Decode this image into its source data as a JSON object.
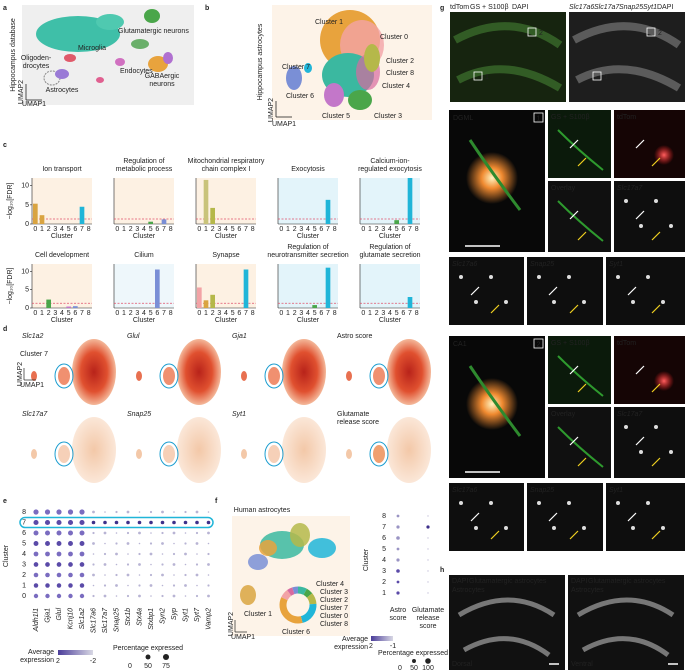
{
  "panels": [
    "a",
    "b",
    "c",
    "d",
    "e",
    "f",
    "g",
    "h"
  ],
  "a": {
    "side_label": "Hippocampus database",
    "types": [
      "Glutamatergic neurons",
      "Microglia",
      "Oligoden-",
      "drocytes",
      "Endocytes",
      "Astrocytes",
      "GABAergic",
      "neurons"
    ],
    "axes": [
      "UMAP2",
      "UMAP1"
    ]
  },
  "b": {
    "side_label": "Hippocampus astrocytes",
    "clusters": [
      "Cluster 1",
      "Cluster 0",
      "Cluster 7",
      "Cluster 2",
      "Cluster 8",
      "Cluster 4",
      "Cluster 6",
      "Cluster 5",
      "Cluster 3"
    ],
    "axes": [
      "UMAP2",
      "UMAP1"
    ]
  },
  "chart_data": [
    {
      "type": "bar",
      "title": [
        "Ion transport"
      ],
      "ylabel": "−log₁₀[FDR]",
      "xlabel": "Cluster",
      "categories": [
        "0",
        "1",
        "2",
        "3",
        "4",
        "5",
        "6",
        "7",
        "8"
      ],
      "values": [
        5.3,
        2.3,
        0,
        0,
        0,
        0,
        0,
        4.5,
        0
      ],
      "colors": [
        "#d9a441",
        "#d9a441",
        "#b5b84a",
        "#4aa64a",
        "#3bb8a0",
        "#c377c9",
        "#7a8fd6",
        "#20b5d8",
        "#999999"
      ],
      "background": "#fdf1e3",
      "threshold": 1.3,
      "ylim": [
        0,
        12
      ],
      "yticks": [
        0,
        5,
        10
      ]
    },
    {
      "type": "bar",
      "title": [
        "Regulation of",
        "metabolic process"
      ],
      "xlabel": "Cluster",
      "categories": [
        "0",
        "1",
        "2",
        "3",
        "4",
        "5",
        "6",
        "7",
        "8"
      ],
      "values": [
        0,
        0,
        0,
        0,
        0,
        0.6,
        0,
        1.2,
        0
      ],
      "colors": [
        "#f2a3a6",
        "#d9a441",
        "#b5b84a",
        "#4aa64a",
        "#3bb8a0",
        "#4aa64a",
        "#7a8fd6",
        "#7a8fd6",
        "#999999"
      ],
      "background": "#fdf1e3",
      "threshold": 1.3,
      "ylim": [
        0,
        12
      ]
    },
    {
      "type": "bar",
      "title": [
        "Mitochondrial respiratory",
        "chain complex I"
      ],
      "xlabel": "Cluster",
      "categories": [
        "0",
        "1",
        "2",
        "3",
        "4",
        "5",
        "6",
        "7",
        "8"
      ],
      "values": [
        0,
        11.5,
        4.2,
        0,
        0,
        0,
        0,
        0,
        0
      ],
      "colors": [
        "#f2a3a6",
        "#c9c37a",
        "#b5b84a",
        "#4aa64a",
        "#3bb8a0",
        "#c377c9",
        "#7a8fd6",
        "#20b5d8",
        "#999999"
      ],
      "background": "#fdf1e3",
      "threshold": 1.3,
      "ylim": [
        0,
        12
      ]
    },
    {
      "type": "bar",
      "title": [
        "Exocytosis"
      ],
      "xlabel": "Cluster",
      "categories": [
        "0",
        "1",
        "2",
        "3",
        "4",
        "5",
        "6",
        "7",
        "8"
      ],
      "values": [
        0,
        0,
        0,
        0,
        0,
        0,
        0,
        6.3,
        0
      ],
      "colors": [
        "#f2a3a6",
        "#d9a441",
        "#b5b84a",
        "#4aa64a",
        "#3bb8a0",
        "#c377c9",
        "#7a8fd6",
        "#20b5d8",
        "#999999"
      ],
      "background": "#e3f4fa",
      "threshold": 1.3,
      "ylim": [
        0,
        12
      ]
    },
    {
      "type": "bar",
      "title": [
        "Calcium-ion-",
        "regulated exocytosis"
      ],
      "xlabel": "Cluster",
      "categories": [
        "0",
        "1",
        "2",
        "3",
        "4",
        "5",
        "6",
        "7",
        "8"
      ],
      "values": [
        0,
        0,
        0,
        0,
        0,
        1,
        0,
        12,
        0
      ],
      "colors": [
        "#f2a3a6",
        "#d9a441",
        "#b5b84a",
        "#4aa64a",
        "#3bb8a0",
        "#4aa64a",
        "#7a8fd6",
        "#20b5d8",
        "#999999"
      ],
      "background": "#e3f4fa",
      "threshold": 1.3,
      "ylim": [
        0,
        12
      ]
    },
    {
      "type": "bar",
      "title": [
        "Cell development"
      ],
      "ylabel": "−log₁₀[FDR]",
      "xlabel": "Cluster",
      "categories": [
        "0",
        "1",
        "2",
        "3",
        "4",
        "5",
        "6",
        "7",
        "8"
      ],
      "values": [
        0,
        0,
        2.3,
        0,
        0,
        0.4,
        0.5,
        0,
        0
      ],
      "colors": [
        "#f2a3a6",
        "#d9a441",
        "#4aa64a",
        "#4aa64a",
        "#3bb8a0",
        "#c377c9",
        "#7a8fd6",
        "#20b5d8",
        "#999999"
      ],
      "background": "#fdf1e3",
      "threshold": 1.3,
      "ylim": [
        0,
        12
      ],
      "yticks": [
        0,
        5,
        10
      ]
    },
    {
      "type": "bar",
      "title": [
        "Cilium"
      ],
      "xlabel": "Cluster",
      "categories": [
        "0",
        "1",
        "2",
        "3",
        "4",
        "5",
        "6",
        "7",
        "8"
      ],
      "values": [
        0,
        0,
        0,
        0,
        0,
        0,
        10.5,
        0,
        0
      ],
      "colors": [
        "#f2a3a6",
        "#d9a441",
        "#b5b84a",
        "#4aa64a",
        "#3bb8a0",
        "#c377c9",
        "#7a8fd6",
        "#20b5d8",
        "#999999"
      ],
      "background": "#eef7fb",
      "threshold": 1.3,
      "ylim": [
        0,
        12
      ]
    },
    {
      "type": "bar",
      "title": [
        "Synapse"
      ],
      "xlabel": "Cluster",
      "categories": [
        "0",
        "1",
        "2",
        "3",
        "4",
        "5",
        "6",
        "7",
        "8"
      ],
      "values": [
        5.6,
        2.1,
        3.6,
        0,
        0,
        0,
        0,
        10.5,
        0
      ],
      "colors": [
        "#f2a3a6",
        "#d9a441",
        "#b5b84a",
        "#4aa64a",
        "#3bb8a0",
        "#c377c9",
        "#7a8fd6",
        "#20b5d8",
        "#999999"
      ],
      "background": "#fdf1e3",
      "threshold": 1.3,
      "ylim": [
        0,
        12
      ]
    },
    {
      "type": "bar",
      "title": [
        "Regulation of",
        "neurotransmitter secretion"
      ],
      "xlabel": "Cluster",
      "categories": [
        "0",
        "1",
        "2",
        "3",
        "4",
        "5",
        "6",
        "7",
        "8"
      ],
      "values": [
        0,
        0,
        0,
        0,
        0,
        0.8,
        0,
        11,
        0
      ],
      "colors": [
        "#f2a3a6",
        "#d9a441",
        "#b5b84a",
        "#4aa64a",
        "#3bb8a0",
        "#4aa64a",
        "#7a8fd6",
        "#20b5d8",
        "#999999"
      ],
      "background": "#e3f4fa",
      "threshold": 1.3,
      "ylim": [
        0,
        12
      ]
    },
    {
      "type": "bar",
      "title": [
        "Regulation of",
        "glutamate secretion"
      ],
      "xlabel": "Cluster",
      "categories": [
        "0",
        "1",
        "2",
        "3",
        "4",
        "5",
        "6",
        "7",
        "8"
      ],
      "values": [
        0,
        0,
        0,
        0,
        0,
        0,
        0,
        3,
        0
      ],
      "colors": [
        "#f2a3a6",
        "#d9a441",
        "#b5b84a",
        "#4aa64a",
        "#3bb8a0",
        "#c377c9",
        "#7a8fd6",
        "#20b5d8",
        "#999999"
      ],
      "background": "#e3f4fa",
      "threshold": 1.3,
      "ylim": [
        0,
        12
      ]
    }
  ],
  "d": {
    "tiles": [
      "Slc1a2",
      "Glul",
      "Gja1",
      "Astro score",
      "Slc17a7",
      "Snap25",
      "Syt1",
      "Glutamate",
      "release score"
    ],
    "cluster": "Cluster 7",
    "axes": [
      "UMAP2",
      "UMAP1"
    ]
  },
  "e": {
    "ylabel": "Cluster",
    "clusters": [
      "8",
      "7",
      "6",
      "5",
      "4",
      "3",
      "2",
      "1",
      "0"
    ],
    "genes": [
      "Aldh1l1",
      "Gja1",
      "Glul",
      "Kcnj10",
      "Slc1a2",
      "Slc17a6",
      "Slc17a7",
      "Snap25",
      "Stx1b",
      "Stx4a",
      "Stxbp1",
      "Syn2",
      "Syp",
      "Syt1",
      "Syt7",
      "Vamp2"
    ],
    "avg_label": [
      "Average",
      "expression"
    ],
    "avg_ticks": [
      2,
      -2
    ],
    "pct_label": "Percentage expressed",
    "pct_ticks": [
      0,
      50,
      75
    ]
  },
  "f": {
    "title": "Human astrocytes",
    "donut": [
      "Cluster 4",
      "Cluster 3",
      "Cluster 2",
      "Cluster 7",
      "Cluster 1",
      "Cluster 0",
      "Cluster 8",
      "Cluster 6"
    ],
    "axes": [
      "UMAP2",
      "UMAP1"
    ],
    "ylabel": "Cluster",
    "clusters": [
      "8",
      "7",
      "6",
      "5",
      "4",
      "3",
      "2",
      "1"
    ],
    "columns": [
      "Astro",
      "score",
      "Glutamate",
      "release",
      "score"
    ],
    "avg_label": [
      "Average",
      "expression"
    ],
    "avg_ticks": [
      2,
      -1
    ],
    "pct_label": "Percentage expressed",
    "pct_ticks": [
      0,
      50,
      100
    ]
  },
  "g": {
    "top_left": [
      "tdTom",
      "GS + S100β",
      "DAPI"
    ],
    "top_right": [
      "Slc17a6",
      "Slc17a7",
      "Snap25",
      "Syt1",
      "DAPI"
    ],
    "boxes": [
      "2",
      "1",
      "2",
      "1"
    ],
    "blocks": [
      {
        "region": "DGML",
        "number": "1",
        "tiles": [
          "GS + S100β",
          "tdTom",
          "Overlay",
          "Slc17a7",
          "Slc17a6",
          "Snap25",
          "Syt1"
        ]
      },
      {
        "region": "CA1",
        "number": "2",
        "tiles": [
          "GS + S100β",
          "tdTom",
          "Overlay",
          "Slc17a7",
          "Slc17a6",
          "Snap25",
          "Syt1"
        ]
      }
    ]
  },
  "h": {
    "left": [
      "DAPI",
      "Glutamatergic astrocytes",
      "Astrocytes",
      "Dorsal"
    ],
    "right": [
      "DAPI",
      "Glutamatergic astrocytes",
      "Astrocytes",
      "Ventral"
    ]
  }
}
